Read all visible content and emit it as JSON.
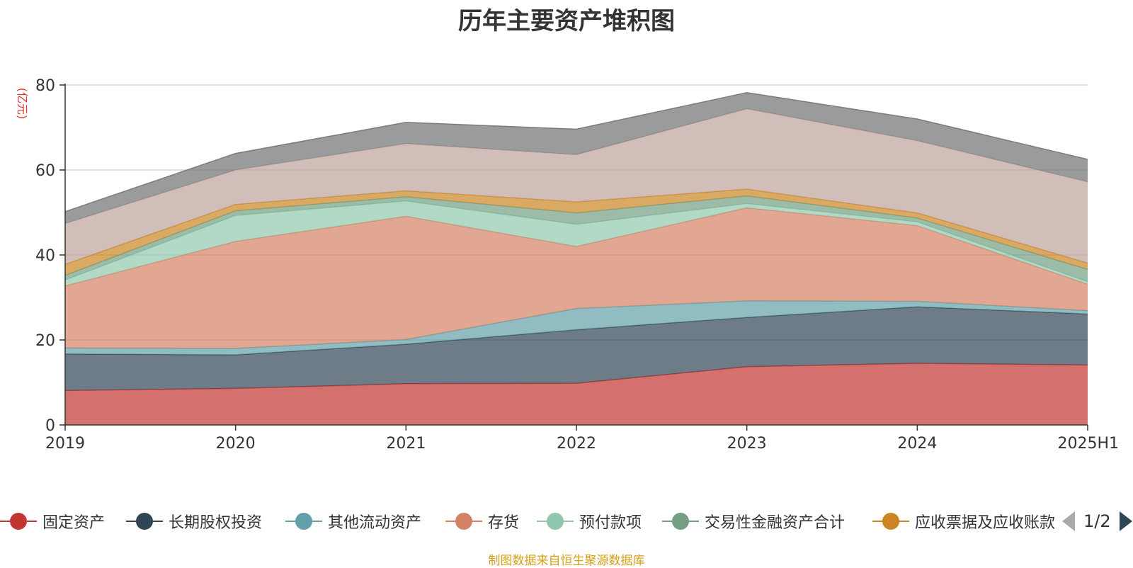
{
  "chart_data": {
    "type": "area",
    "stacked": true,
    "title": "历年主要资产堆积图",
    "unit_label": "(亿元)",
    "categories": [
      "2019",
      "2020",
      "2021",
      "2022",
      "2023",
      "2024",
      "2025H1"
    ],
    "ylim": [
      0,
      80
    ],
    "yticks": [
      0,
      20,
      40,
      60,
      80
    ],
    "grid": true,
    "legend_position": "bottom",
    "series": [
      {
        "name": "固定资产",
        "color": "#c23531",
        "values": [
          8.1,
          8.6,
          9.7,
          9.8,
          13.7,
          14.5,
          14.1
        ]
      },
      {
        "name": "长期股权投资",
        "color": "#2f4554",
        "values": [
          8.6,
          7.9,
          9.3,
          12.6,
          11.6,
          13.3,
          12.0
        ]
      },
      {
        "name": "其他流动资产",
        "color": "#61a0a8",
        "values": [
          1.4,
          1.5,
          1.1,
          5.0,
          3.9,
          1.3,
          0.8
        ]
      },
      {
        "name": "存货",
        "color": "#d48265",
        "values": [
          14.6,
          25.2,
          29.0,
          14.6,
          21.9,
          17.8,
          6.2
        ]
      },
      {
        "name": "预付款项",
        "color": "#91c7ae",
        "values": [
          1.4,
          6.1,
          3.6,
          5.2,
          1.0,
          0.9,
          0.6
        ]
      },
      {
        "name": "交易性金融资产合计",
        "color": "#749f83",
        "values": [
          1.1,
          1.1,
          1.0,
          2.7,
          1.8,
          0.9,
          2.9
        ]
      },
      {
        "name": "应收票据及应收账款",
        "color": "#ca8622",
        "values": [
          2.6,
          1.5,
          1.4,
          2.6,
          1.6,
          1.2,
          1.5
        ]
      },
      {
        "name": "",
        "color": "#bda29a",
        "values": [
          9.6,
          8.1,
          11.1,
          11.1,
          18.9,
          17.0,
          19.1
        ]
      },
      {
        "name": "",
        "color": "#6e7074",
        "values": [
          2.8,
          3.9,
          5.0,
          6.0,
          3.8,
          5.1,
          5.3
        ]
      }
    ]
  },
  "legend": {
    "page_indicator": "1/2"
  },
  "source_note": "制图数据来自恒生聚源数据库"
}
